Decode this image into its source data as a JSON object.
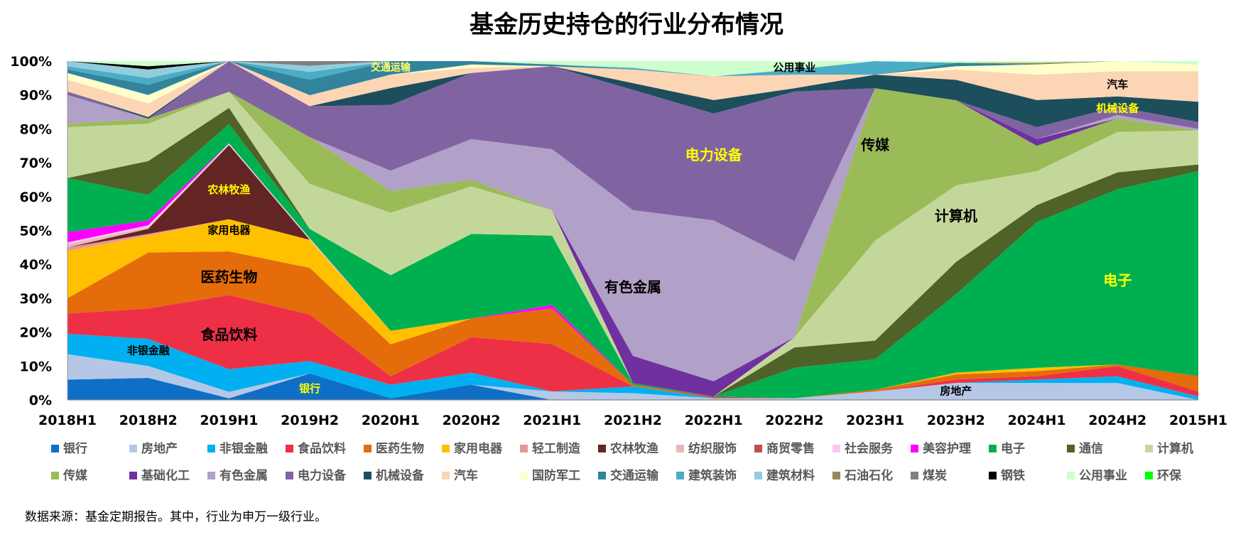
{
  "chart_data": {
    "type": "area",
    "stacked": true,
    "normalized": true,
    "title": "基金历史持仓的行业分布情况",
    "source_note": "数据来源：基金定期报告。其中，行业为申万一级行业。",
    "x": [
      "2018H1",
      "2018H2",
      "2019H1",
      "2019H2",
      "2020H1",
      "2020H2",
      "2021H1",
      "2021H2",
      "2022H1",
      "2022H2",
      "2023H1",
      "2023H2",
      "2024H1",
      "2024H2",
      "2015H1"
    ],
    "ylim": [
      0,
      100
    ],
    "yticks": [
      "0%",
      "10%",
      "20%",
      "30%",
      "40%",
      "50%",
      "60%",
      "70%",
      "80%",
      "90%",
      "100%"
    ],
    "legend_position": "bottom",
    "series": [
      {
        "name": "银行",
        "color": "#0F6FC6",
        "values": [
          6,
          6.5,
          0.5,
          8.5,
          0.5,
          4.5,
          0,
          0,
          0,
          0,
          0,
          0,
          0,
          0,
          0
        ]
      },
      {
        "name": "房地产",
        "color": "#B4C7E7",
        "values": [
          7.5,
          3.5,
          2,
          0,
          0,
          0,
          2.5,
          2,
          0.5,
          0.5,
          2.5,
          5,
          5,
          5,
          0
        ]
      },
      {
        "name": "非银金融",
        "color": "#00B0F0",
        "values": [
          6,
          8,
          7,
          4,
          4,
          3.5,
          0,
          2,
          0,
          0,
          0,
          0,
          1,
          2,
          1
        ]
      },
      {
        "name": "食品饮料",
        "color": "#EE3046",
        "values": [
          6,
          9,
          23,
          15,
          2.5,
          10.5,
          14,
          0,
          0,
          0,
          0,
          1,
          1,
          3,
          1.5
        ]
      },
      {
        "name": "医药生物",
        "color": "#E46C0A",
        "values": [
          4.5,
          16.5,
          13.5,
          15,
          9.5,
          5.5,
          10.5,
          0.5,
          0,
          0,
          0.5,
          1.5,
          1.5,
          0.5,
          4.5
        ]
      },
      {
        "name": "家用电器",
        "color": "#FFC000",
        "values": [
          14,
          5,
          10,
          9,
          4,
          0,
          0,
          0,
          0,
          0,
          0,
          0.5,
          1,
          0,
          0
        ]
      },
      {
        "name": "轻工制造",
        "color": "#E6959A",
        "values": [
          1,
          0.5,
          0,
          0,
          0,
          0,
          0,
          0,
          0,
          0,
          0,
          0,
          0,
          0,
          0
        ]
      },
      {
        "name": "农林牧渔",
        "color": "#632523",
        "values": [
          0,
          1.5,
          23,
          0,
          0,
          0,
          0,
          0,
          0,
          0,
          0,
          0,
          0,
          0,
          0
        ]
      },
      {
        "name": "纺织服饰",
        "color": "#E6B9B8",
        "values": [
          1,
          0.5,
          0,
          0,
          0,
          0,
          0,
          0,
          0,
          0,
          0,
          0,
          0,
          0,
          0
        ]
      },
      {
        "name": "商贸零售",
        "color": "#C0504D",
        "values": [
          0,
          0,
          0,
          0,
          0,
          0,
          0,
          0,
          0.5,
          0,
          0,
          0,
          0,
          0,
          0
        ]
      },
      {
        "name": "社会服务",
        "color": "#F9C9F0",
        "values": [
          0.5,
          0.5,
          0.5,
          0.5,
          0,
          0,
          0,
          0,
          0,
          0,
          0,
          0,
          0,
          0,
          0
        ]
      },
      {
        "name": "美容护理",
        "color": "#FF00FF",
        "values": [
          3,
          1.5,
          0,
          0,
          0,
          0,
          1,
          0,
          0,
          0,
          0,
          0,
          0,
          0,
          0
        ]
      },
      {
        "name": "电子",
        "color": "#00B050",
        "values": [
          16,
          7.5,
          6,
          3,
          16.5,
          25,
          20.5,
          0.5,
          0,
          9,
          9,
          23,
          43,
          52,
          60.5
        ]
      },
      {
        "name": "通信",
        "color": "#4F6228",
        "values": [
          0,
          10,
          5,
          0,
          0,
          0,
          0,
          0,
          0,
          6,
          5.5,
          9.5,
          5,
          5,
          2
        ]
      },
      {
        "name": "计算机",
        "color": "#C4D79B",
        "values": [
          15,
          11,
          5,
          14.5,
          18.5,
          14,
          7.5,
          0,
          0,
          3,
          29.5,
          22.5,
          10,
          12,
          10
        ]
      },
      {
        "name": "传媒",
        "color": "#9BBB59",
        "values": [
          1,
          1.5,
          0,
          15,
          6.5,
          2,
          0,
          0,
          0,
          0,
          45,
          25,
          7.5,
          4,
          0
        ]
      },
      {
        "name": "基础化工",
        "color": "#7030A0",
        "values": [
          0,
          0,
          0,
          0,
          0,
          0,
          0,
          8,
          4.5,
          0,
          0,
          0,
          2,
          0,
          0
        ]
      },
      {
        "name": "有色金属",
        "color": "#B1A0C7",
        "values": [
          8.5,
          0,
          0,
          0,
          6,
          12,
          18,
          43,
          47.5,
          22.5,
          0,
          0,
          0,
          1,
          0.5
        ]
      },
      {
        "name": "电力设备",
        "color": "#8064A2",
        "values": [
          1,
          0,
          9.5,
          10,
          19.5,
          19.5,
          24.5,
          35.5,
          31.5,
          50,
          0,
          0,
          3.5,
          2.5,
          2
        ]
      },
      {
        "name": "机械设备",
        "color": "#1D4E5C",
        "values": [
          0,
          0.5,
          0,
          0,
          5,
          0,
          0,
          2,
          4,
          1,
          4,
          6,
          8,
          3,
          6
        ]
      },
      {
        "name": "汽车",
        "color": "#FCD5B5",
        "values": [
          3.5,
          4,
          0,
          3.5,
          4,
          1.5,
          0,
          4,
          7,
          4,
          0,
          3,
          7.5,
          7.5,
          9
        ]
      },
      {
        "name": "国防军工",
        "color": "#FFFFCC",
        "values": [
          2,
          2.5,
          0,
          0,
          0,
          1,
          0,
          0,
          0,
          0,
          0,
          1,
          3,
          3,
          2
        ]
      },
      {
        "name": "交通运输",
        "color": "#31849B",
        "values": [
          1,
          3,
          0,
          5,
          4,
          1,
          0.5,
          0,
          0,
          0,
          0,
          1,
          0,
          0,
          0
        ]
      },
      {
        "name": "建筑装饰",
        "color": "#4BACC6",
        "values": [
          1,
          2,
          0,
          2.5,
          0,
          0,
          0,
          0.5,
          0,
          1.5,
          4,
          0,
          0,
          0,
          0
        ]
      },
      {
        "name": "建筑材料",
        "color": "#93CDDD",
        "values": [
          1.5,
          2.5,
          0,
          2,
          0,
          0,
          0,
          0,
          0,
          0,
          0,
          0,
          0,
          0,
          0
        ]
      },
      {
        "name": "石油石化",
        "color": "#948A54",
        "values": [
          0,
          0,
          0,
          0,
          0,
          0,
          0,
          0,
          0,
          0,
          0,
          0,
          0.5,
          0,
          0
        ]
      },
      {
        "name": "煤炭",
        "color": "#7F7F7F",
        "values": [
          0,
          0,
          0,
          1.5,
          0,
          0,
          0,
          0,
          0,
          0,
          0,
          0,
          0,
          0,
          0
        ]
      },
      {
        "name": "钢铁",
        "color": "#000000",
        "values": [
          0,
          1,
          0,
          0,
          0,
          0,
          0,
          0,
          0,
          0,
          0,
          0,
          0,
          0,
          0
        ]
      },
      {
        "name": "公用事业",
        "color": "#CCFFCC",
        "values": [
          0,
          1.5,
          0,
          0,
          0,
          0,
          1,
          2,
          4.5,
          2.5,
          0,
          0.5,
          0.5,
          0,
          1
        ]
      },
      {
        "name": "环保",
        "color": "#00FF00",
        "values": [
          0,
          0,
          0,
          0,
          0,
          0,
          0,
          0,
          0,
          0,
          0,
          0,
          0,
          0,
          0
        ]
      }
    ],
    "annotations": [
      {
        "text": "交通运输",
        "at_x": "2020H1",
        "at_y": 98,
        "color": "#FFFF66",
        "size": 14
      },
      {
        "text": "公用事业",
        "at_x": "2022H2",
        "at_y": 98,
        "color": "#000000",
        "size": 15
      },
      {
        "text": "汽车",
        "at_x": "2024H2",
        "at_y": 93,
        "color": "#000000",
        "size": 15
      },
      {
        "text": "机械设备",
        "at_x": "2024H2",
        "at_y": 86,
        "color": "#FFFF00",
        "size": 15
      },
      {
        "text": "电力设备",
        "at_x": "2022H1",
        "at_y": 72,
        "color": "#FFFF00",
        "size": 20
      },
      {
        "text": "传媒",
        "at_x": "2023H1",
        "at_y": 75,
        "color": "#000000",
        "size": 20
      },
      {
        "text": "计算机",
        "at_x": "2023H2",
        "at_y": 54,
        "color": "#000000",
        "size": 20
      },
      {
        "text": "有色金属",
        "at_x": "2021H2",
        "at_y": 33,
        "color": "#000000",
        "size": 20
      },
      {
        "text": "电子",
        "at_x": "2024H2",
        "at_y": 35,
        "color": "#FFFF00",
        "size": 20
      },
      {
        "text": "房地产",
        "at_x": "2023H2",
        "at_y": 2.5,
        "color": "#000000",
        "size": 15
      },
      {
        "text": "农林牧渔",
        "at_x": "2019H1",
        "at_y": 62,
        "color": "#FFFF00",
        "size": 15
      },
      {
        "text": "家用电器",
        "at_x": "2019H1",
        "at_y": 50,
        "color": "#000000",
        "size": 15
      },
      {
        "text": "医药生物",
        "at_x": "2019H1",
        "at_y": 36,
        "color": "#000000",
        "size": 20
      },
      {
        "text": "食品饮料",
        "at_x": "2019H1",
        "at_y": 19,
        "color": "#000000",
        "size": 20
      },
      {
        "text": "非银金融",
        "at_x": "2018H2",
        "at_y": 14.5,
        "color": "#000000",
        "size": 15
      },
      {
        "text": "银行",
        "at_x": "2019H2",
        "at_y": 3.3,
        "color": "#FFFF00",
        "size": 15
      }
    ]
  }
}
